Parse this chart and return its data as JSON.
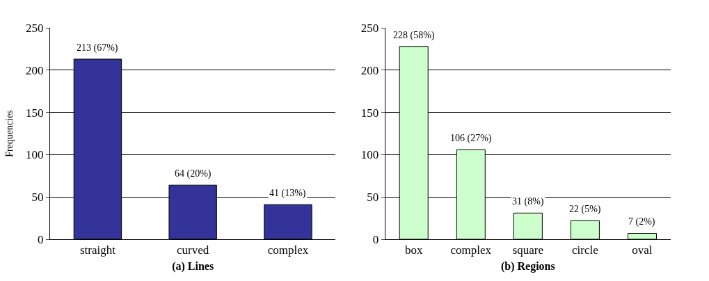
{
  "chart_data": [
    {
      "type": "bar",
      "xlabel": "(a) Lines",
      "ylabel": "Frequencies",
      "categories": [
        "straight",
        "curved",
        "complex"
      ],
      "values": [
        213,
        64,
        41
      ],
      "value_labels": [
        "213 (67%)",
        "64 (20%)",
        "41 (13%)"
      ],
      "color": "#333399",
      "ylim": [
        0,
        250
      ],
      "yticks": [
        0,
        50,
        100,
        150,
        200,
        250
      ],
      "grid": "y"
    },
    {
      "type": "bar",
      "xlabel": "(b) Regions",
      "categories": [
        "box",
        "complex",
        "square",
        "circle",
        "oval"
      ],
      "values": [
        228,
        106,
        31,
        22,
        7
      ],
      "value_labels": [
        "228 (58%)",
        "106 (27%)",
        "31 (8%)",
        "22 (5%)",
        "7 (2%)"
      ],
      "color": "#ccffcc",
      "ylim": [
        0,
        250
      ],
      "yticks": [
        0,
        50,
        100,
        150,
        200,
        250
      ],
      "grid": "y"
    }
  ]
}
